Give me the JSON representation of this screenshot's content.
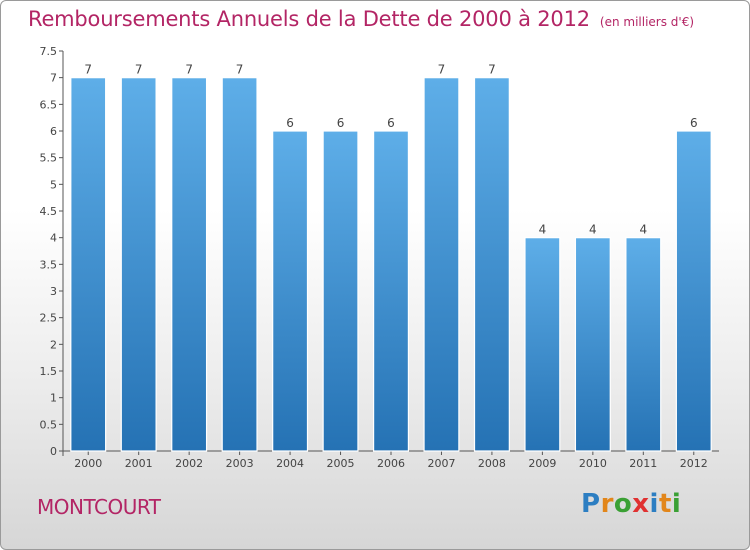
{
  "header": {
    "title": "Remboursements Annuels de la Dette de 2000 à 2012",
    "unit": "(en milliers d'€)"
  },
  "footer": {
    "commune": "MONTCOURT",
    "logo_letters": [
      "P",
      "r",
      "o",
      "x",
      "i",
      "t",
      "i"
    ],
    "logo_colors": [
      "#2c7ec2",
      "#e2861a",
      "#3aa034",
      "#e03131",
      "#2c7ec2",
      "#e2861a",
      "#3aa034"
    ]
  },
  "colors": {
    "bar": "#3f93d6",
    "bar_light": "#5eaee8",
    "bar_dark": "#2572b4",
    "accent": "#b32565",
    "axis": "#555555",
    "text": "#444444"
  },
  "chart_data": {
    "type": "bar",
    "categories": [
      "2000",
      "2001",
      "2002",
      "2003",
      "2004",
      "2005",
      "2006",
      "2007",
      "2008",
      "2009",
      "2010",
      "2011",
      "2012"
    ],
    "values": [
      7,
      7,
      7,
      7,
      6,
      6,
      6,
      7,
      7,
      4,
      4,
      4,
      6
    ],
    "title": "Remboursements Annuels de la Dette de 2000 à 2012",
    "ylim": [
      0,
      7.5
    ],
    "yticks": [
      "0",
      "0.5",
      "1",
      "1.5",
      "2",
      "2.5",
      "3",
      "3.5",
      "4",
      "4.5",
      "5",
      "5.5",
      "6",
      "6.5",
      "7",
      "7.5"
    ],
    "grid": false,
    "legend": "none"
  }
}
